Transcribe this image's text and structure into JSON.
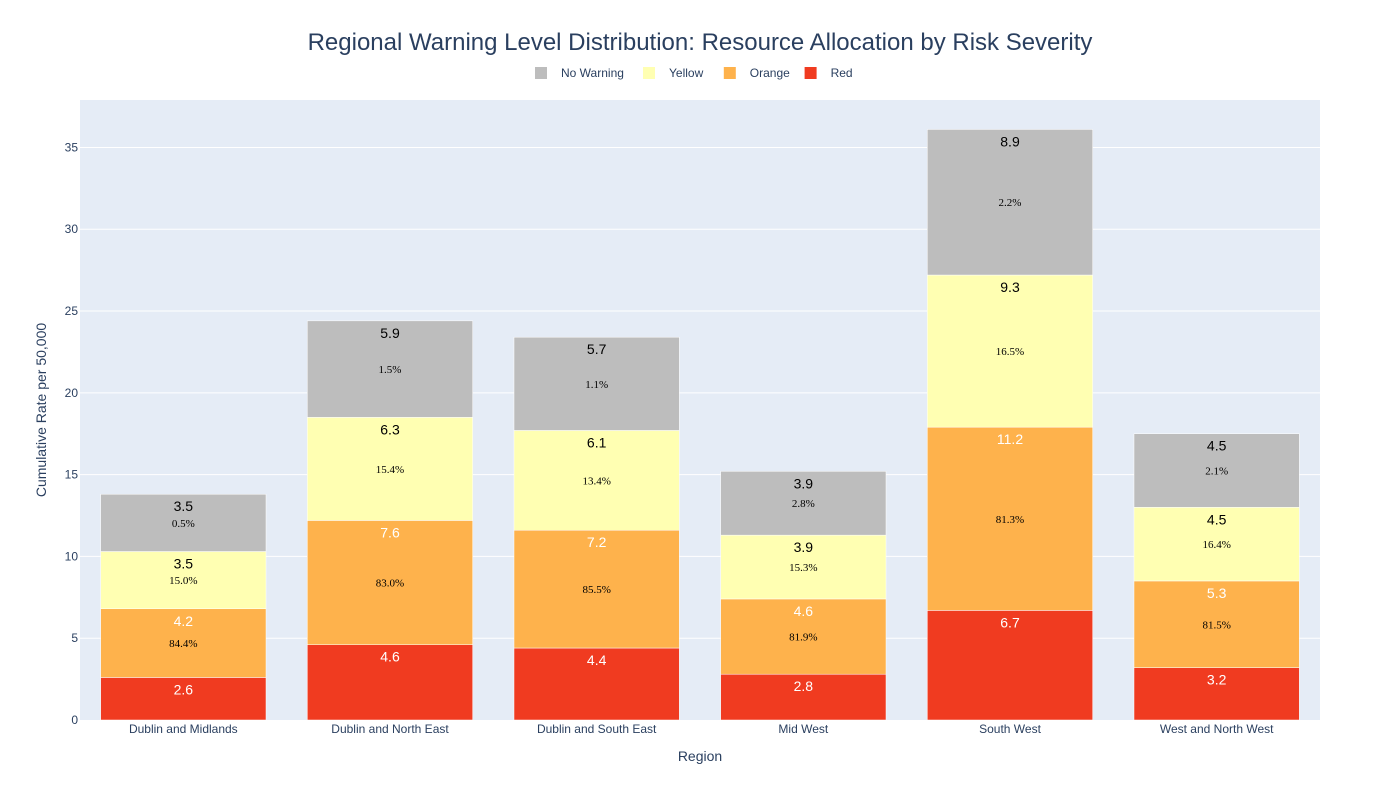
{
  "chart_data": {
    "type": "bar",
    "stacked": true,
    "title": "Regional Warning Level Distribution: Resource Allocation by Risk Severity",
    "xlabel": "Region",
    "ylabel": "Cumulative Rate per 50,000",
    "ylim": [
      0,
      37.9
    ],
    "yticks": [
      0,
      5,
      10,
      15,
      20,
      25,
      30,
      35
    ],
    "grid": true,
    "legend_position": "top-center",
    "categories": [
      "Dublin and Midlands",
      "Dublin and North East",
      "Dublin and South East",
      "Mid West",
      "South West",
      "West and North West"
    ],
    "series": [
      {
        "name": "Red",
        "color": "#f03b20",
        "label_color": "#ffffff",
        "values": [
          2.6,
          4.6,
          4.4,
          2.8,
          6.7,
          3.2
        ]
      },
      {
        "name": "Orange",
        "color": "#feb24c",
        "label_color": "#ffffff",
        "values": [
          4.2,
          7.6,
          7.2,
          4.6,
          11.2,
          5.3
        ]
      },
      {
        "name": "Yellow",
        "color": "#ffffb2",
        "label_color": "#000000",
        "values": [
          3.5,
          6.3,
          6.1,
          3.9,
          9.3,
          4.5
        ]
      },
      {
        "name": "No Warning",
        "color": "#bdbdbd",
        "label_color": "#000000",
        "values": [
          3.5,
          5.9,
          5.7,
          3.9,
          8.9,
          4.5
        ]
      }
    ],
    "legend_order": [
      "No Warning",
      "Yellow",
      "Orange",
      "Red"
    ],
    "annotations": [
      {
        "category": "Dublin and Midlands",
        "texts": [
          "84.4%",
          "15.0%",
          "0.5%"
        ]
      },
      {
        "category": "Dublin and North East",
        "texts": [
          "83.0%",
          "15.4%",
          "1.5%"
        ]
      },
      {
        "category": "Dublin and South East",
        "texts": [
          "85.5%",
          "13.4%",
          "1.1%"
        ]
      },
      {
        "category": "Mid West",
        "texts": [
          "81.9%",
          "15.3%",
          "2.8%"
        ]
      },
      {
        "category": "South West",
        "texts": [
          "81.3%",
          "16.5%",
          "2.2%"
        ]
      },
      {
        "category": "West and North West",
        "texts": [
          "81.5%",
          "16.4%",
          "2.1%"
        ]
      }
    ]
  }
}
